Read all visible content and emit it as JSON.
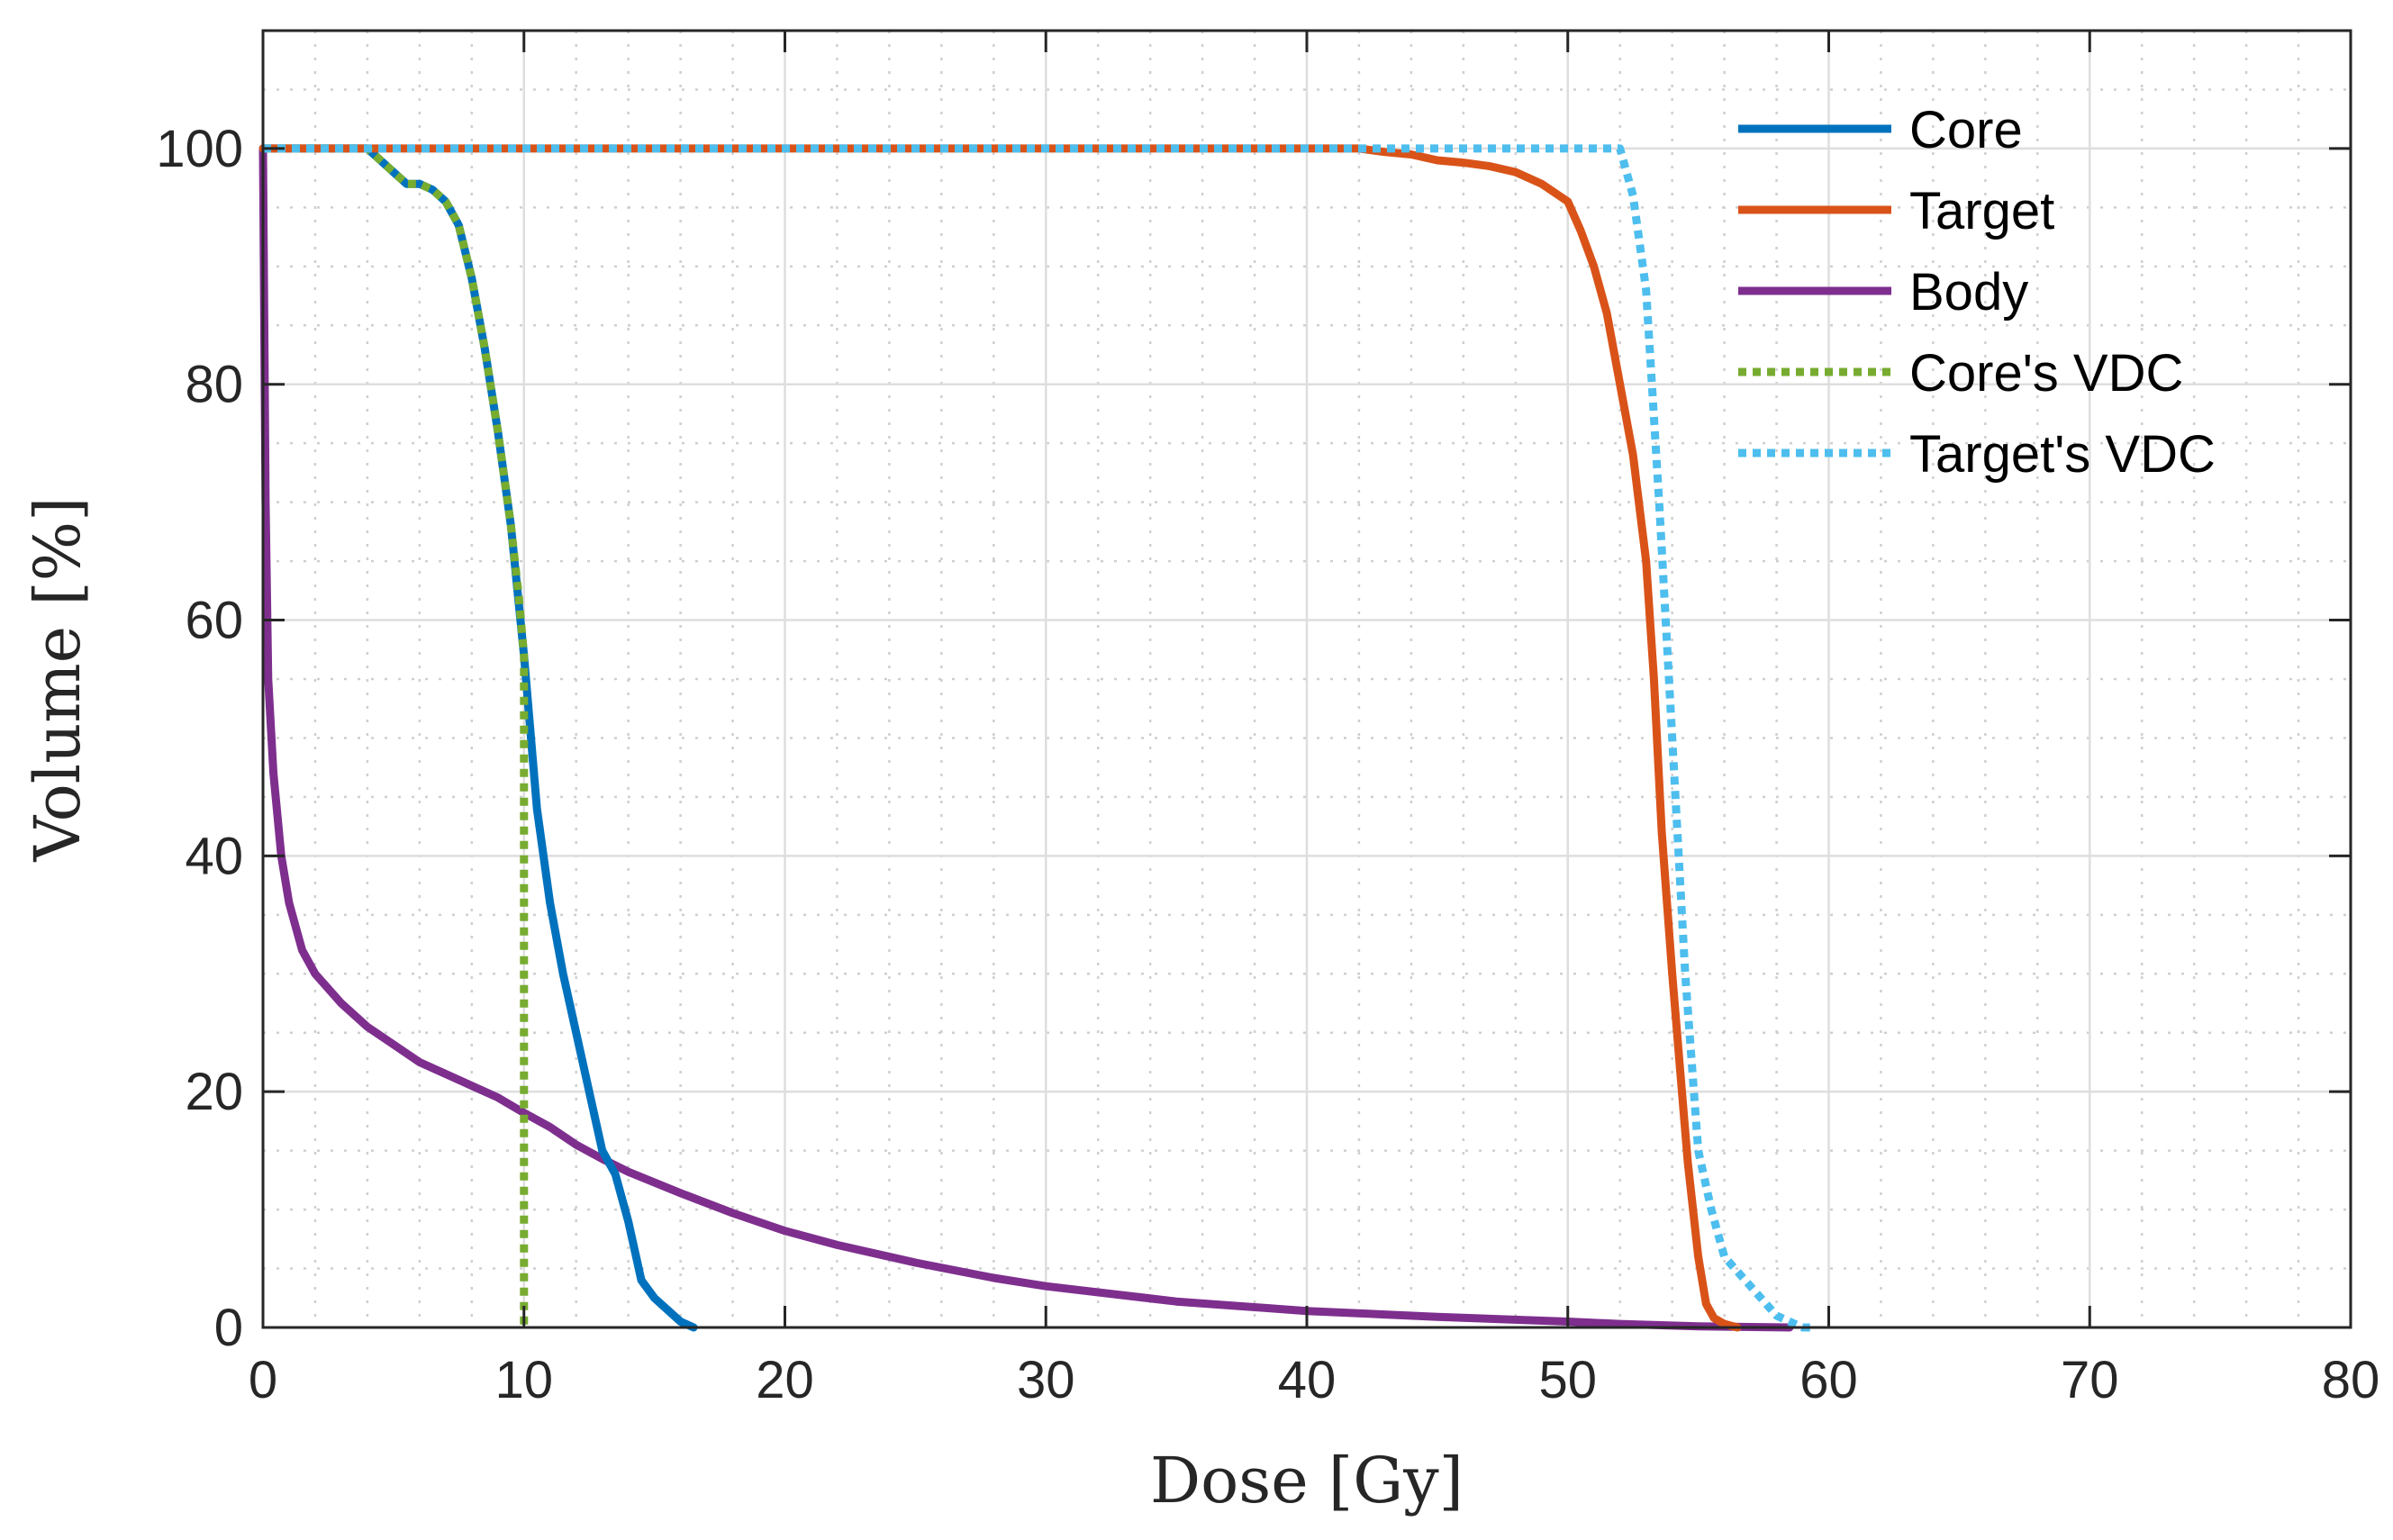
{
  "chart_data": {
    "type": "line",
    "title": "",
    "xlabel": "Dose [Gy]",
    "ylabel": "Volume [%]",
    "xlim": [
      0,
      80
    ],
    "ylim": [
      0,
      110
    ],
    "xticks": [
      0,
      10,
      20,
      30,
      40,
      50,
      60,
      70,
      80
    ],
    "yticks": [
      0,
      20,
      40,
      60,
      80,
      100
    ],
    "xtick_labels": [
      "0",
      "10",
      "20",
      "30",
      "40",
      "50",
      "60",
      "70",
      "80"
    ],
    "ytick_labels": [
      "0",
      "20",
      "40",
      "60",
      "80",
      "100"
    ],
    "xminor_step": 2,
    "yminor_step": 5,
    "grid": true,
    "legend_position": "top-right",
    "series": [
      {
        "name": "Core",
        "color": "#0072BD",
        "style": "solid",
        "x": [
          0,
          4,
          4.5,
          5,
          5.5,
          6,
          6.5,
          7,
          7.5,
          8,
          8.5,
          9,
          9.5,
          10,
          10.5,
          11,
          11.5,
          12,
          12.5,
          13,
          13.5,
          14,
          14.5,
          15,
          15.5,
          16,
          16.3,
          16.5
        ],
        "y": [
          100,
          100,
          99,
          98,
          97,
          97,
          96.5,
          95.5,
          93.5,
          89,
          83,
          76,
          68,
          57,
          44,
          36,
          30,
          25,
          20,
          15,
          13,
          9,
          4,
          2.5,
          1.5,
          0.5,
          0.2,
          0
        ]
      },
      {
        "name": "Target",
        "color": "#D95319",
        "style": "solid",
        "x": [
          0,
          42,
          43,
          44,
          45,
          46,
          47,
          48,
          49,
          50,
          50.5,
          51,
          51.5,
          52,
          52.5,
          53,
          53.3,
          53.6,
          54,
          54.3,
          54.6,
          55,
          55.3,
          55.6,
          56,
          56.5
        ],
        "y": [
          100,
          100,
          99.7,
          99.5,
          99,
          98.8,
          98.5,
          98,
          97,
          95.5,
          93,
          90,
          86,
          80,
          74,
          65,
          55,
          42,
          30,
          22,
          14,
          6,
          2,
          0.8,
          0.3,
          0
        ]
      },
      {
        "name": "Body",
        "color": "#7E2F8E",
        "style": "solid",
        "x": [
          0,
          0.1,
          0.2,
          0.4,
          0.7,
          1,
          1.5,
          2,
          3,
          4,
          5,
          6,
          7,
          8,
          9,
          10,
          11,
          12,
          13,
          14,
          16,
          18,
          20,
          22,
          25,
          28,
          30,
          35,
          40,
          45,
          50,
          52,
          55,
          58.5
        ],
        "y": [
          100,
          70,
          55,
          47,
          40,
          36,
          32,
          30,
          27.5,
          25.5,
          24,
          22.5,
          21.5,
          20.5,
          19.5,
          18.2,
          17,
          15.5,
          14.3,
          13.2,
          11.4,
          9.7,
          8.2,
          7,
          5.5,
          4.2,
          3.5,
          2.2,
          1.4,
          0.9,
          0.5,
          0.3,
          0.1,
          0
        ]
      },
      {
        "name": "Core's VDC",
        "color": "#77AC30",
        "style": "dotted",
        "x": [
          0,
          4,
          4.5,
          5,
          5.5,
          6,
          6.5,
          7,
          7.5,
          8,
          8.5,
          9,
          9.5,
          9.8,
          10,
          10,
          10
        ],
        "y": [
          100,
          100,
          99,
          98,
          97,
          97,
          96.5,
          95.5,
          93.5,
          89,
          83,
          76,
          68,
          62,
          57,
          20,
          0
        ]
      },
      {
        "name": "Target's VDC",
        "color": "#4DBEEE",
        "style": "dotted",
        "x": [
          0,
          52,
          52.5,
          53,
          53.5,
          54,
          54.5,
          55,
          55.5,
          56,
          57,
          58,
          59,
          59.5
        ],
        "y": [
          100,
          100,
          96,
          88,
          70,
          50,
          30,
          15,
          10,
          6,
          3.5,
          1,
          0,
          0
        ]
      }
    ]
  }
}
